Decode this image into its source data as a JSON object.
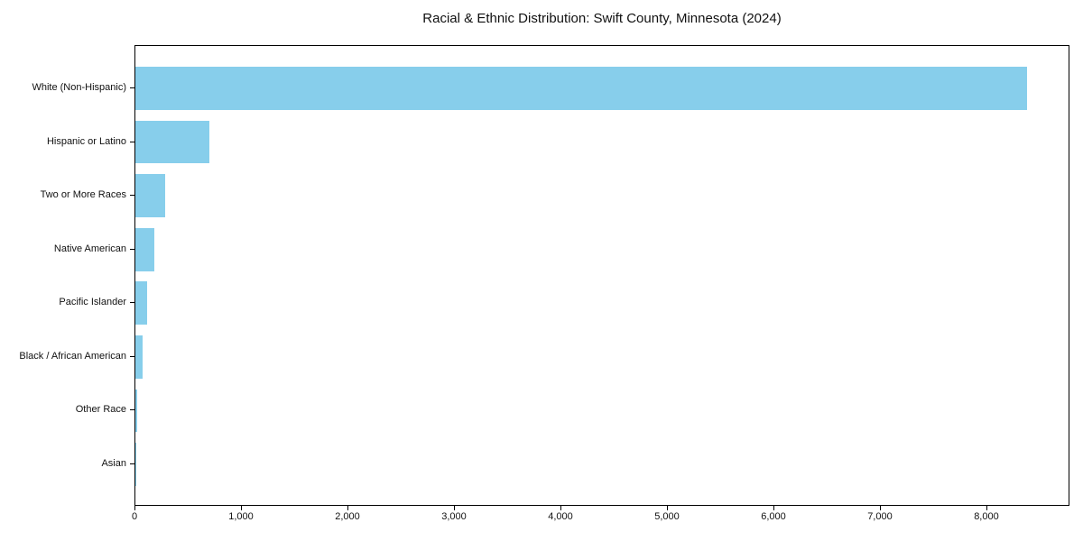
{
  "chart_data": {
    "type": "bar",
    "orientation": "horizontal",
    "title": "Racial & Ethnic Distribution: Swift County, Minnesota (2024)",
    "categories": [
      "White (Non-Hispanic)",
      "Hispanic or Latino",
      "Two or More Races",
      "Native American",
      "Pacific Islander",
      "Black / African American",
      "Other Race",
      "Asian"
    ],
    "values": [
      8370,
      695,
      280,
      178,
      110,
      68,
      15,
      5
    ],
    "xlabel": "",
    "ylabel": "",
    "xlim": [
      0,
      8780
    ],
    "x_ticks": [
      0,
      1000,
      2000,
      3000,
      4000,
      5000,
      6000,
      7000,
      8000
    ],
    "x_tick_labels": [
      "0",
      "1,000",
      "2,000",
      "3,000",
      "4,000",
      "5,000",
      "6,000",
      "7,000",
      "8,000"
    ],
    "bar_color": "#87CEEB",
    "grid": false,
    "legend": null
  }
}
